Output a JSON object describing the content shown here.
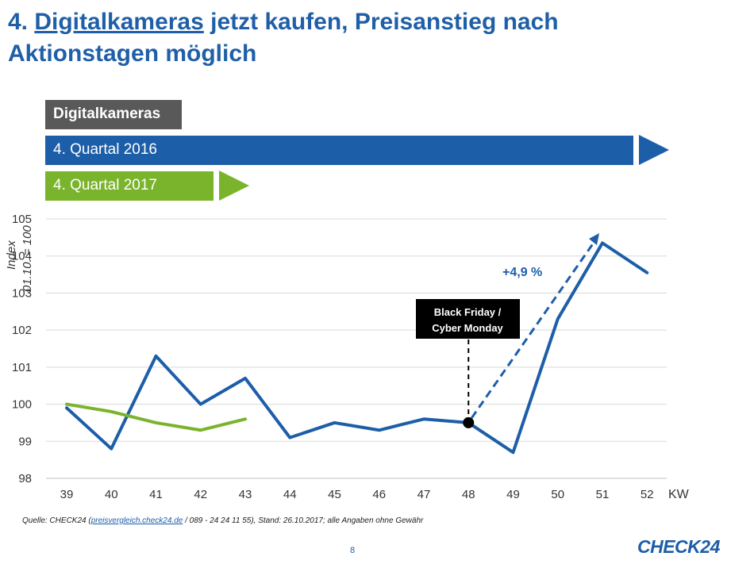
{
  "slide": {
    "title_prefix": "4. ",
    "title_highlight": "Digitalkameras",
    "title_rest": " jetzt kaufen, Preisanstieg nach Aktionstagen möglich",
    "ylabel_line1": "Index",
    "ylabel_line2": "01.10. = 100",
    "category_label": "Digitalkameras",
    "series_label_2016": "4. Quartal 2016",
    "series_label_2017": "4. Quartal 2017",
    "source_prefix": "Quelle: CHECK24 (",
    "source_link": "preisvergleich.check24.de",
    "source_suffix": " / 089 - 24 24 11 55), Stand: 26.10.2017; alle Angaben ohne Gewähr",
    "page_number": "8",
    "logo": "CHECK24",
    "colors": {
      "blue": "#1c5ea8",
      "green": "#7ab42c",
      "gray": "#595959",
      "grid": "#d9d9d9"
    }
  },
  "chart_data": {
    "type": "line",
    "title": "",
    "xlabel": "KW",
    "ylabel": "Index 01.10. = 100",
    "categories": [
      "39",
      "40",
      "41",
      "42",
      "43",
      "44",
      "45",
      "46",
      "47",
      "48",
      "49",
      "50",
      "51",
      "52"
    ],
    "ylim": [
      98,
      105
    ],
    "yticks": [
      98,
      99,
      100,
      101,
      102,
      103,
      104,
      105
    ],
    "grid": true,
    "series": [
      {
        "name": "4. Quartal 2016",
        "color": "#1c5ea8",
        "values": [
          99.9,
          98.8,
          101.3,
          100.0,
          100.7,
          99.1,
          99.5,
          99.3,
          99.6,
          99.5,
          98.7,
          102.3,
          104.35,
          103.55
        ]
      },
      {
        "name": "4. Quartal 2017",
        "color": "#7ab42c",
        "values": [
          100.0,
          99.8,
          99.5,
          99.3,
          99.6,
          null,
          null,
          null,
          null,
          null,
          null,
          null,
          null,
          null
        ]
      }
    ],
    "annotations": [
      {
        "type": "marker",
        "x": "48",
        "y": 99.5,
        "label": "Black Friday / Cyber Monday"
      },
      {
        "type": "dashed-arrow",
        "from_x": "48",
        "from_y": 99.5,
        "to_x": "51",
        "to_y": 104.4,
        "label": "+4,9 %"
      }
    ]
  }
}
